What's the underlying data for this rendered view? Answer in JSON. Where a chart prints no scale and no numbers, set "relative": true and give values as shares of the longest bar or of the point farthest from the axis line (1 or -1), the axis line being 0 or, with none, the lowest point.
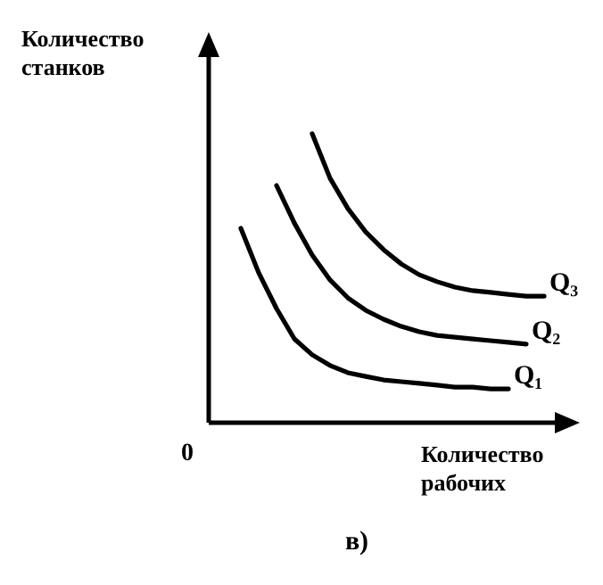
{
  "chart_data": {
    "type": "line",
    "relative": true,
    "xlabel": "Количество рабочих",
    "ylabel": "Количество станков",
    "annotations": [
      "0",
      "в)"
    ],
    "marker": "none",
    "line_style": "solid",
    "categories": [
      null,
      null,
      null,
      null,
      null,
      null,
      null,
      null,
      null,
      null,
      null,
      null,
      null,
      null,
      null,
      null,
      null,
      null,
      null
    ],
    "series": [
      {
        "name": "Q₁",
        "color": "#000000",
        "values": [
          null,
          0.673,
          0.519,
          0.395,
          0.29,
          0.235,
          0.198,
          0.173,
          0.16,
          0.148,
          0.142,
          0.136,
          0.13,
          0.123,
          0.123,
          0.117,
          0.117,
          null,
          null
        ]
      },
      {
        "name": "Q₂",
        "color": "#000000",
        "values": [
          null,
          null,
          null,
          0.821,
          0.691,
          0.58,
          0.494,
          0.432,
          0.389,
          0.358,
          0.333,
          0.315,
          0.302,
          0.296,
          0.29,
          0.284,
          0.278,
          0.272,
          null
        ]
      },
      {
        "name": "Q₃",
        "color": "#000000",
        "values": [
          null,
          null,
          null,
          null,
          null,
          1,
          0.846,
          0.741,
          0.66,
          0.599,
          0.549,
          0.512,
          0.488,
          0.469,
          0.457,
          0.451,
          0.444,
          0.438,
          0.438
        ]
      }
    ]
  }
}
